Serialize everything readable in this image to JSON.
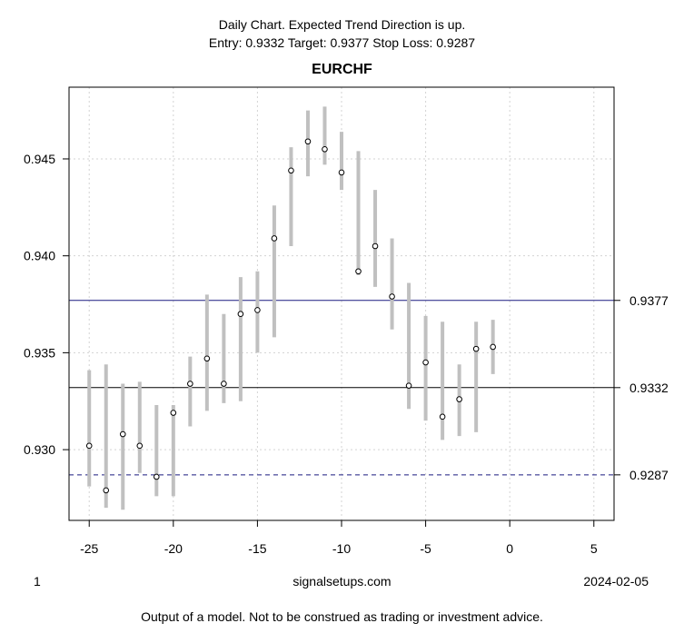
{
  "header": {
    "line1": "Daily Chart. Expected Trend Direction is up.",
    "line2": "Entry: 0.9332 Target: 0.9377 Stop Loss: 0.9287"
  },
  "footer": {
    "left": "1",
    "center": "signalsetups.com",
    "right": "2024-02-05",
    "disclaimer": "Output of a model. Not to be construed as trading or investment advice."
  },
  "chart_data": {
    "type": "scatter",
    "title": "EURCHF",
    "xlabel": "",
    "ylabel": "",
    "xlim": [
      -26.2,
      6.2
    ],
    "ylim": [
      0.92635,
      0.9487
    ],
    "x_ticks": [
      -25,
      -20,
      -15,
      -10,
      -5,
      0,
      5
    ],
    "y_ticks": [
      0.93,
      0.935,
      0.94,
      0.945
    ],
    "grid": true,
    "points": [
      {
        "x": -25,
        "close": 0.9302,
        "low": 0.9281,
        "high": 0.9341
      },
      {
        "x": -24,
        "close": 0.9279,
        "low": 0.927,
        "high": 0.9344
      },
      {
        "x": -23,
        "close": 0.9308,
        "low": 0.9269,
        "high": 0.9334
      },
      {
        "x": -22,
        "close": 0.9302,
        "low": 0.9288,
        "high": 0.9335
      },
      {
        "x": -21,
        "close": 0.9286,
        "low": 0.9276,
        "high": 0.9323
      },
      {
        "x": -20,
        "close": 0.9319,
        "low": 0.9276,
        "high": 0.9323
      },
      {
        "x": -19,
        "close": 0.9334,
        "low": 0.9312,
        "high": 0.9348
      },
      {
        "x": -18,
        "close": 0.9347,
        "low": 0.932,
        "high": 0.938
      },
      {
        "x": -17,
        "close": 0.9334,
        "low": 0.9324,
        "high": 0.937
      },
      {
        "x": -16,
        "close": 0.937,
        "low": 0.9325,
        "high": 0.9389
      },
      {
        "x": -15,
        "close": 0.9372,
        "low": 0.935,
        "high": 0.9392
      },
      {
        "x": -14,
        "close": 0.9409,
        "low": 0.9358,
        "high": 0.9426
      },
      {
        "x": -13,
        "close": 0.9444,
        "low": 0.9405,
        "high": 0.9456
      },
      {
        "x": -12,
        "close": 0.9459,
        "low": 0.9441,
        "high": 0.9475
      },
      {
        "x": -11,
        "close": 0.9455,
        "low": 0.9447,
        "high": 0.9477
      },
      {
        "x": -10,
        "close": 0.9443,
        "low": 0.9434,
        "high": 0.9464
      },
      {
        "x": -9,
        "close": 0.9392,
        "low": 0.939,
        "high": 0.9454
      },
      {
        "x": -8,
        "close": 0.9405,
        "low": 0.9384,
        "high": 0.9434
      },
      {
        "x": -7,
        "close": 0.9379,
        "low": 0.9362,
        "high": 0.9409
      },
      {
        "x": -6,
        "close": 0.9333,
        "low": 0.9321,
        "high": 0.9386
      },
      {
        "x": -5,
        "close": 0.9345,
        "low": 0.9315,
        "high": 0.9369
      },
      {
        "x": -4,
        "close": 0.9317,
        "low": 0.9305,
        "high": 0.9366
      },
      {
        "x": -3,
        "close": 0.9326,
        "low": 0.9307,
        "high": 0.9344
      },
      {
        "x": -2,
        "close": 0.9352,
        "low": 0.9309,
        "high": 0.9366
      },
      {
        "x": -1,
        "close": 0.9353,
        "low": 0.9339,
        "high": 0.9367
      }
    ],
    "levels": [
      {
        "name": "Target",
        "value": 0.9377,
        "label": "0.9377",
        "color": "#1a1a80",
        "dash": "solid"
      },
      {
        "name": "Entry",
        "value": 0.9332,
        "label": "0.9332",
        "color": "#000000",
        "dash": "solid"
      },
      {
        "name": "Stop Loss",
        "value": 0.9287,
        "label": "0.9287",
        "color": "#1a1a80",
        "dash": "dashed"
      }
    ],
    "colors": {
      "range_bar": "#c0c0c0",
      "grid": "#d3d3d3",
      "point_fill": "#ffffff",
      "point_stroke": "#000000"
    }
  }
}
